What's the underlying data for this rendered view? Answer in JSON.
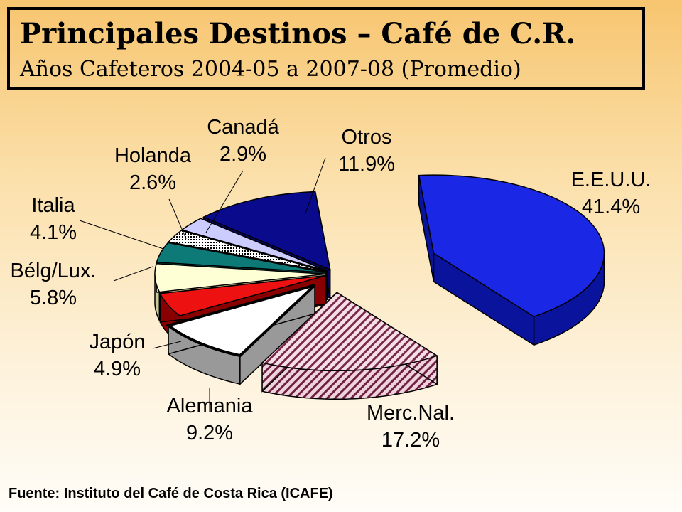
{
  "title": "Principales Destinos – Café de C.R.",
  "subtitle": "Años Cafeteros 2004-05 a 2007-08 (Promedio)",
  "source": "Fuente: Instituto del Café de Costa Rica (ICAFE)",
  "chart_data": {
    "type": "pie",
    "exploded": true,
    "three_d": true,
    "title": "Principales Destinos – Café de C.R.",
    "subtitle": "Años Cafeteros 2004-05 a 2007-08 (Promedio)",
    "slices": [
      {
        "label": "E.E.U.U.",
        "value": 41.4,
        "value_label": "41.4%",
        "color": "#1a28e6",
        "side_color": "#0a139c",
        "pattern": "solid"
      },
      {
        "label": "Merc.Nal.",
        "value": 17.2,
        "value_label": "17.2%",
        "color": "#f5dfe6",
        "side_color": "#f0d6de",
        "pattern": "hatch",
        "hatch_color": "#7a2848"
      },
      {
        "label": "Alemania",
        "value": 9.2,
        "value_label": "9.2%",
        "color": "#ffffff",
        "side_color": "#999999",
        "pattern": "solid"
      },
      {
        "label": "Japón",
        "value": 4.9,
        "value_label": "4.9%",
        "color": "#ee1111",
        "side_color": "#8a0000",
        "pattern": "solid"
      },
      {
        "label": "Bélg/Lux.",
        "value": 5.8,
        "value_label": "5.8%",
        "color": "#ffffd6",
        "side_color": "#c8c898",
        "pattern": "solid"
      },
      {
        "label": "Italia",
        "value": 4.1,
        "value_label": "4.1%",
        "color": "#0e7a78",
        "side_color": "#075250",
        "pattern": "solid"
      },
      {
        "label": "Holanda",
        "value": 2.6,
        "value_label": "2.6%",
        "color": "#ffffff",
        "side_color": "#777777",
        "pattern": "dots"
      },
      {
        "label": "Canadá",
        "value": 2.9,
        "value_label": "2.9%",
        "color": "#ccccff",
        "side_color": "#8888cc",
        "pattern": "solid"
      },
      {
        "label": "Otros",
        "value": 11.9,
        "value_label": "11.9%",
        "color": "#0a0a8c",
        "side_color": "#060660",
        "pattern": "solid"
      }
    ]
  }
}
